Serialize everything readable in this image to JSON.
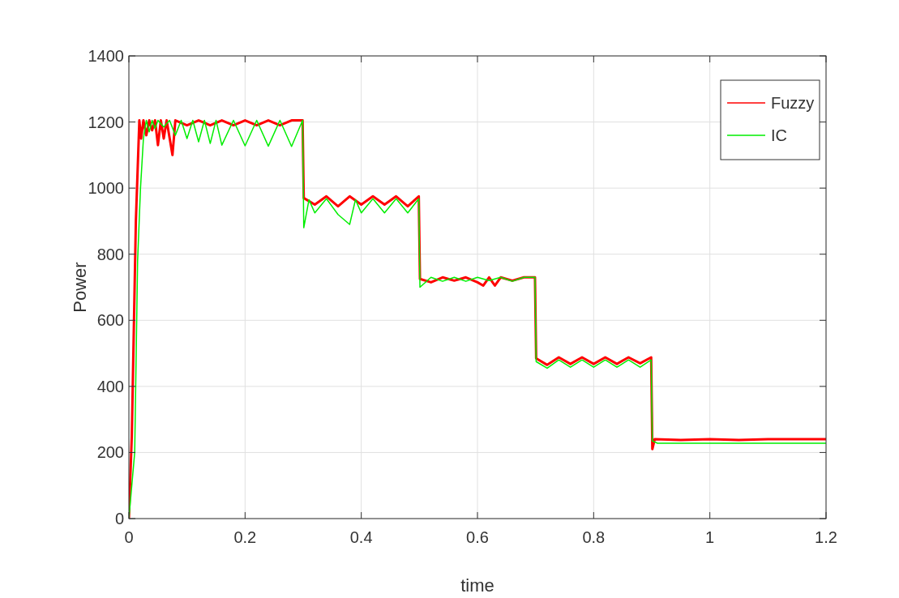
{
  "chart_data": {
    "type": "line",
    "xlabel": "time",
    "ylabel": "Power",
    "xlim": [
      0,
      1.2
    ],
    "ylim": [
      0,
      1400
    ],
    "xticks": [
      0,
      0.2,
      0.4,
      0.6,
      0.8,
      1,
      1.2
    ],
    "yticks": [
      0,
      200,
      400,
      600,
      800,
      1000,
      1200,
      1400
    ],
    "grid": true,
    "legend": "top right",
    "line_style": "solid",
    "series": [
      {
        "name": "Fuzzy",
        "color": "#ff0000",
        "x": [
          0,
          0.005,
          0.012,
          0.018,
          0.021,
          0.025,
          0.03,
          0.035,
          0.04,
          0.045,
          0.05,
          0.055,
          0.06,
          0.065,
          0.075,
          0.08,
          0.1,
          0.12,
          0.14,
          0.16,
          0.18,
          0.2,
          0.22,
          0.24,
          0.26,
          0.28,
          0.299,
          0.301,
          0.32,
          0.34,
          0.36,
          0.38,
          0.4,
          0.42,
          0.44,
          0.46,
          0.48,
          0.499,
          0.501,
          0.52,
          0.54,
          0.56,
          0.58,
          0.6,
          0.61,
          0.62,
          0.63,
          0.64,
          0.66,
          0.68,
          0.699,
          0.701,
          0.72,
          0.74,
          0.76,
          0.78,
          0.8,
          0.82,
          0.84,
          0.86,
          0.88,
          0.899,
          0.901,
          0.905,
          0.95,
          1,
          1.05,
          1.1,
          1.2
        ],
        "values": [
          0,
          250,
          900,
          1205,
          1150,
          1205,
          1160,
          1205,
          1175,
          1205,
          1130,
          1205,
          1150,
          1205,
          1100,
          1205,
          1190,
          1205,
          1190,
          1205,
          1190,
          1205,
          1190,
          1205,
          1190,
          1205,
          1205,
          970,
          950,
          975,
          945,
          975,
          950,
          975,
          950,
          975,
          945,
          975,
          725,
          715,
          730,
          720,
          730,
          715,
          705,
          730,
          705,
          730,
          720,
          730,
          730,
          485,
          465,
          488,
          468,
          488,
          468,
          488,
          468,
          488,
          470,
          488,
          210,
          240,
          238,
          240,
          238,
          240,
          240
        ]
      },
      {
        "name": "IC",
        "color": "#00ee00",
        "x": [
          0,
          0.01,
          0.015,
          0.02,
          0.025,
          0.03,
          0.035,
          0.04,
          0.045,
          0.05,
          0.06,
          0.07,
          0.08,
          0.09,
          0.1,
          0.11,
          0.12,
          0.13,
          0.14,
          0.15,
          0.16,
          0.18,
          0.2,
          0.22,
          0.24,
          0.26,
          0.28,
          0.299,
          0.301,
          0.31,
          0.32,
          0.34,
          0.36,
          0.38,
          0.39,
          0.4,
          0.42,
          0.44,
          0.46,
          0.48,
          0.499,
          0.501,
          0.52,
          0.54,
          0.56,
          0.58,
          0.6,
          0.62,
          0.64,
          0.66,
          0.68,
          0.699,
          0.701,
          0.72,
          0.74,
          0.76,
          0.78,
          0.8,
          0.82,
          0.84,
          0.86,
          0.88,
          0.899,
          0.901,
          0.91,
          1,
          1.1,
          1.2
        ],
        "values": [
          0,
          200,
          780,
          1000,
          1150,
          1205,
          1170,
          1205,
          1180,
          1205,
          1185,
          1205,
          1160,
          1205,
          1150,
          1205,
          1140,
          1205,
          1135,
          1205,
          1130,
          1205,
          1128,
          1205,
          1127,
          1205,
          1126,
          1205,
          880,
          965,
          925,
          968,
          920,
          890,
          965,
          925,
          968,
          925,
          968,
          925,
          968,
          700,
          730,
          718,
          730,
          718,
          730,
          720,
          730,
          718,
          730,
          730,
          475,
          455,
          480,
          458,
          480,
          458,
          480,
          458,
          480,
          458,
          480,
          235,
          228,
          228,
          228,
          228
        ]
      }
    ]
  }
}
